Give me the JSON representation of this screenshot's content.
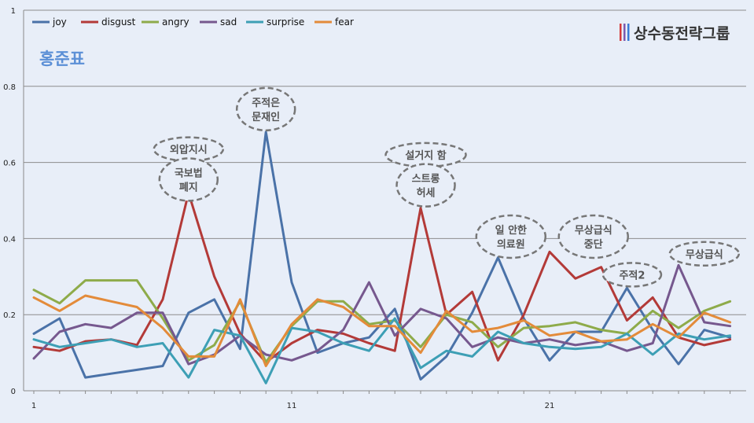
{
  "chart_data": {
    "type": "line",
    "title": "홍준표",
    "brand": "상수동전략그룹",
    "ylim": [
      0,
      1
    ],
    "yticks": [
      "0",
      "0.2",
      "0.4",
      "0.6",
      "0.8",
      "1"
    ],
    "xlim": [
      1,
      28
    ],
    "xticks": [
      "1",
      "11",
      "21"
    ],
    "legend_position": "top-left",
    "grid": true,
    "x": [
      1,
      2,
      3,
      4,
      5,
      6,
      7,
      8,
      9,
      10,
      11,
      12,
      13,
      14,
      15,
      16,
      17,
      18,
      19,
      20,
      21,
      22,
      23,
      24,
      25,
      26,
      27,
      28
    ],
    "series": [
      {
        "name": "joy",
        "color": "#4a72a8",
        "values": [
          0.15,
          0.19,
          0.035,
          0.045,
          0.055,
          0.065,
          0.205,
          0.24,
          0.11,
          0.68,
          0.285,
          0.1,
          0.125,
          0.14,
          0.215,
          0.03,
          0.09,
          0.205,
          0.35,
          0.19,
          0.08,
          0.155,
          0.155,
          0.27,
          0.16,
          0.07,
          0.16,
          0.14
        ]
      },
      {
        "name": "disgust",
        "color": "#b33a38",
        "values": [
          0.115,
          0.105,
          0.13,
          0.135,
          0.12,
          0.24,
          0.52,
          0.3,
          0.15,
          0.075,
          0.125,
          0.16,
          0.15,
          0.125,
          0.105,
          0.48,
          0.2,
          0.26,
          0.08,
          0.2,
          0.365,
          0.295,
          0.325,
          0.185,
          0.245,
          0.14,
          0.12,
          0.135
        ]
      },
      {
        "name": "angry",
        "color": "#8eab4a",
        "values": [
          0.265,
          0.23,
          0.29,
          0.29,
          0.29,
          0.19,
          0.08,
          0.12,
          0.235,
          0.075,
          0.17,
          0.235,
          0.235,
          0.175,
          0.185,
          0.115,
          0.2,
          0.18,
          0.115,
          0.165,
          0.17,
          0.18,
          0.16,
          0.15,
          0.21,
          0.165,
          0.21,
          0.235
        ]
      },
      {
        "name": "sad",
        "color": "#76588e",
        "values": [
          0.085,
          0.155,
          0.175,
          0.165,
          0.205,
          0.205,
          0.07,
          0.095,
          0.145,
          0.095,
          0.08,
          0.105,
          0.16,
          0.285,
          0.145,
          0.215,
          0.19,
          0.115,
          0.14,
          0.125,
          0.135,
          0.12,
          0.13,
          0.105,
          0.125,
          0.33,
          0.18,
          0.17
        ]
      },
      {
        "name": "surprise",
        "color": "#3d9fb5",
        "values": [
          0.135,
          0.115,
          0.125,
          0.135,
          0.115,
          0.125,
          0.035,
          0.16,
          0.145,
          0.02,
          0.165,
          0.155,
          0.125,
          0.105,
          0.19,
          0.06,
          0.105,
          0.09,
          0.155,
          0.125,
          0.115,
          0.11,
          0.115,
          0.15,
          0.095,
          0.15,
          0.135,
          0.145
        ]
      },
      {
        "name": "fear",
        "color": "#e38b3a",
        "values": [
          0.245,
          0.21,
          0.25,
          0.235,
          0.22,
          0.165,
          0.09,
          0.09,
          0.24,
          0.065,
          0.175,
          0.24,
          0.22,
          0.17,
          0.17,
          0.1,
          0.21,
          0.155,
          0.165,
          0.185,
          0.145,
          0.155,
          0.13,
          0.135,
          0.175,
          0.14,
          0.205,
          0.18
        ]
      }
    ],
    "annotations": [
      {
        "lines": [
          "외압지시"
        ],
        "x": 7,
        "y": 0.635
      },
      {
        "lines": [
          "국보법",
          "폐지"
        ],
        "x": 7,
        "y": 0.555
      },
      {
        "lines": [
          "주적은",
          "문재인"
        ],
        "x": 10,
        "y": 0.74
      },
      {
        "lines": [
          "설거지 함"
        ],
        "x": 16.2,
        "y": 0.62
      },
      {
        "lines": [
          "스트롱",
          "허세"
        ],
        "x": 16.2,
        "y": 0.54
      },
      {
        "lines": [
          "일 안한",
          "의료원"
        ],
        "x": 19.5,
        "y": 0.405
      },
      {
        "lines": [
          "무상급식",
          "중단"
        ],
        "x": 22.7,
        "y": 0.405
      },
      {
        "lines": [
          "주적2"
        ],
        "x": 24.2,
        "y": 0.305
      },
      {
        "lines": [
          "무상급식"
        ],
        "x": 27,
        "y": 0.36
      }
    ]
  }
}
